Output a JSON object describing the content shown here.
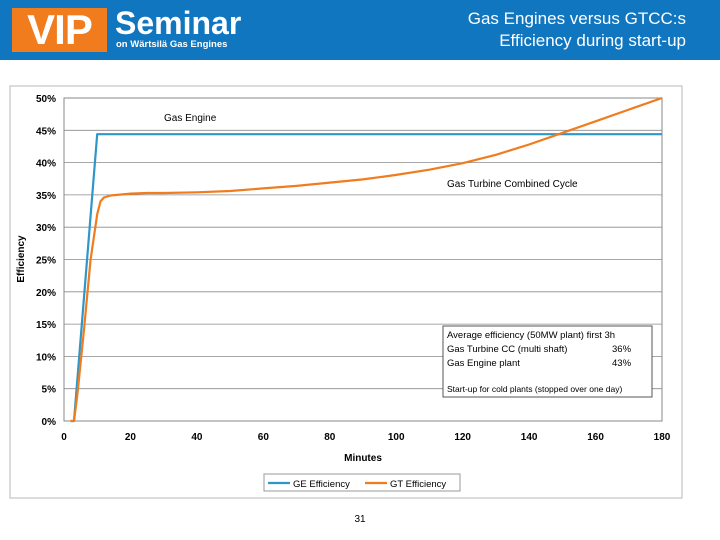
{
  "header": {
    "logo_text": "VIP",
    "logo_word": "Seminar",
    "logo_sub": "on Wärtsilä Gas Engines",
    "title_line1": "Gas Engines versus GTCC:s",
    "title_line2": "Efficiency during start-up",
    "bg_color": "#0f76bf",
    "logo_color": "#f07c1e"
  },
  "chart_data": {
    "type": "line",
    "xlabel": "Minutes",
    "ylabel": "Efficiency",
    "xlim": [
      0,
      180
    ],
    "ylim": [
      0,
      50
    ],
    "x_ticks": [
      "0",
      "20",
      "40",
      "60",
      "80",
      "100",
      "120",
      "140",
      "160",
      "180"
    ],
    "y_ticks": [
      "0%",
      "5%",
      "10%",
      "15%",
      "20%",
      "25%",
      "30%",
      "35%",
      "40%",
      "45%",
      "50%"
    ],
    "grid": "horizontal",
    "legend_placement": "bottom",
    "series": [
      {
        "name": "GE Efficiency",
        "color": "#2f96c8",
        "x": [
          2,
          3,
          10,
          180
        ],
        "y": [
          0,
          0,
          44.4,
          44.4
        ]
      },
      {
        "name": "GT Efficiency",
        "color": "#f07c1e",
        "x": [
          2,
          3,
          4,
          6,
          8,
          10,
          11,
          12,
          14,
          16,
          20,
          25,
          30,
          40,
          50,
          60,
          70,
          80,
          90,
          100,
          110,
          120,
          130,
          140,
          150,
          160,
          170,
          180
        ],
        "y": [
          0,
          0,
          4,
          14,
          25,
          32,
          34,
          34.6,
          34.9,
          35.0,
          35.2,
          35.3,
          35.3,
          35.4,
          35.6,
          36.0,
          36.4,
          36.9,
          37.4,
          38.1,
          38.9,
          39.9,
          41.2,
          42.8,
          44.6,
          46.4,
          48.2,
          50.0
        ]
      }
    ],
    "annotations": {
      "gas_engine_label": "Gas Engine",
      "gtcc_label": "Gas Turbine Combined Cycle"
    },
    "info_box": {
      "line1": "Average efficiency (50MW plant) first 3h",
      "row2_label": "Gas Turbine CC (multi shaft)",
      "row2_value": "36%",
      "row3_label": "Gas Engine plant",
      "row3_value": "43%",
      "line4": "Start-up for cold plants (stopped over one day)"
    }
  },
  "footer": {
    "page_number": "31"
  }
}
